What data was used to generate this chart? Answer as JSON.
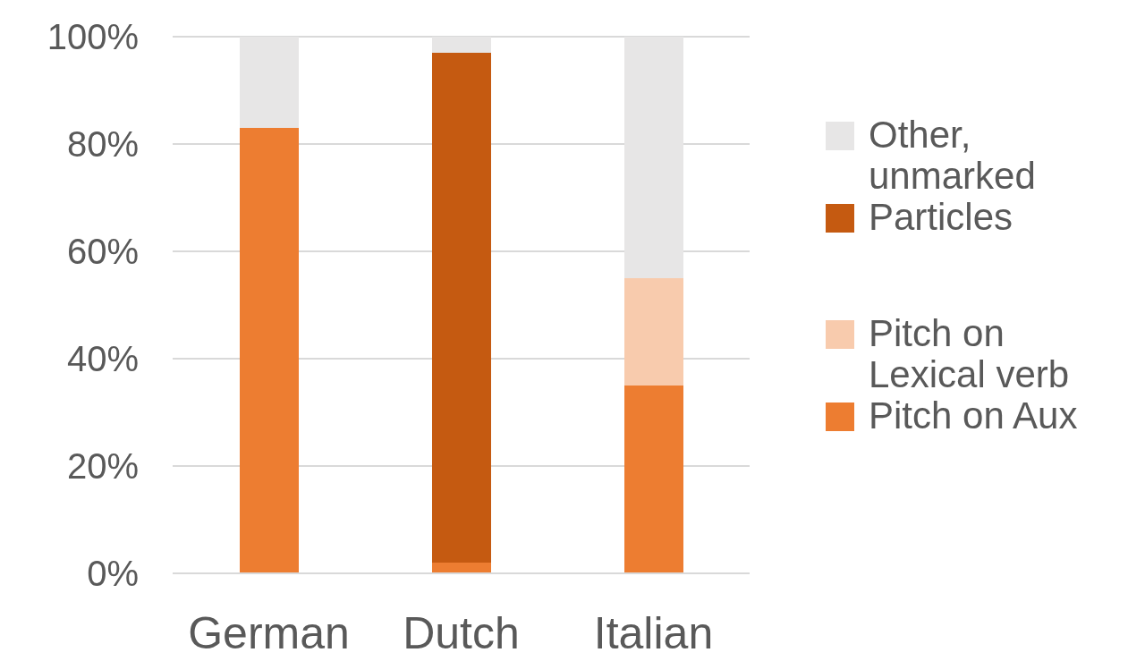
{
  "chart_data": {
    "type": "bar",
    "stacked": true,
    "categories": [
      "German",
      "Dutch",
      "Italian"
    ],
    "series": [
      {
        "name": "Pitch on Aux",
        "color": "#ed7d31",
        "values": [
          83,
          2,
          35
        ]
      },
      {
        "name": "Pitch on Lexical verb",
        "color": "#f8cbad",
        "values": [
          0,
          0,
          20
        ]
      },
      {
        "name": "Particles",
        "color": "#c55a11",
        "values": [
          0,
          95,
          0
        ]
      },
      {
        "name": "Other, unmarked",
        "color": "#e7e6e6",
        "values": [
          17,
          3,
          45
        ]
      }
    ],
    "ylim": [
      0,
      100
    ],
    "yticks": [
      {
        "value": 0,
        "label": "0%"
      },
      {
        "value": 20,
        "label": "20%"
      },
      {
        "value": 40,
        "label": "40%"
      },
      {
        "value": 60,
        "label": "60%"
      },
      {
        "value": 80,
        "label": "80%"
      },
      {
        "value": 100,
        "label": "100%"
      }
    ],
    "grid": "y",
    "legend": "right"
  }
}
